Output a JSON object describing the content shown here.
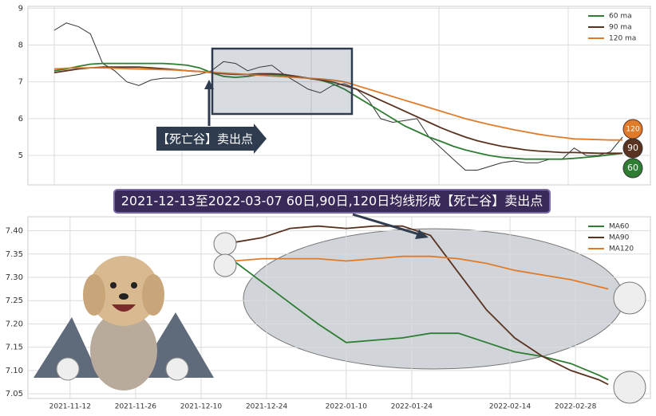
{
  "chart_data": [
    {
      "type": "line",
      "ylim": [
        4.2,
        9.05
      ],
      "yticks": [
        5,
        6,
        7,
        8,
        9
      ],
      "grid": true,
      "legend": "upper right",
      "price_color": "#333333",
      "values": [
        8.4,
        8.6,
        8.5,
        8.3,
        7.5,
        7.3,
        7.0,
        6.9,
        7.05,
        7.1,
        7.1,
        7.15,
        7.2,
        7.3,
        7.55,
        7.5,
        7.3,
        7.4,
        7.45,
        7.2,
        7.0,
        6.8,
        6.7,
        6.9,
        6.95,
        6.8,
        6.5,
        6.0,
        5.9,
        5.95,
        6.0,
        5.5,
        5.2,
        4.9,
        4.6,
        4.6,
        4.7,
        4.8,
        4.85,
        4.8,
        4.8,
        4.9,
        4.9,
        5.2,
        5.0,
        5.0,
        5.1,
        5.5
      ],
      "series": [
        {
          "name": "60 ma",
          "color": "#2e7d32",
          "values": [
            7.3,
            7.35,
            7.42,
            7.48,
            7.5,
            7.5,
            7.5,
            7.5,
            7.5,
            7.5,
            7.48,
            7.45,
            7.38,
            7.25,
            7.15,
            7.12,
            7.15,
            7.2,
            7.2,
            7.18,
            7.15,
            7.1,
            7.05,
            6.95,
            6.8,
            6.6,
            6.4,
            6.2,
            6.0,
            5.8,
            5.65,
            5.5,
            5.38,
            5.25,
            5.15,
            5.07,
            5.0,
            4.95,
            4.92,
            4.9,
            4.9,
            4.9,
            4.9,
            4.92,
            4.95,
            4.98,
            5.02,
            5.06
          ]
        },
        {
          "name": "90 ma",
          "color": "#5a3220",
          "values": [
            7.25,
            7.3,
            7.35,
            7.38,
            7.4,
            7.4,
            7.4,
            7.4,
            7.38,
            7.36,
            7.33,
            7.3,
            7.28,
            7.25,
            7.22,
            7.2,
            7.2,
            7.22,
            7.22,
            7.2,
            7.15,
            7.1,
            7.05,
            7.0,
            6.9,
            6.8,
            6.65,
            6.5,
            6.35,
            6.2,
            6.05,
            5.9,
            5.75,
            5.62,
            5.5,
            5.4,
            5.32,
            5.25,
            5.2,
            5.15,
            5.12,
            5.1,
            5.08,
            5.08,
            5.07,
            5.06,
            5.06,
            5.06
          ]
        },
        {
          "name": "120 ma",
          "color": "#e07b2a",
          "values": [
            7.35,
            7.37,
            7.38,
            7.38,
            7.38,
            7.37,
            7.36,
            7.35,
            7.34,
            7.33,
            7.32,
            7.3,
            7.28,
            7.26,
            7.24,
            7.22,
            7.2,
            7.18,
            7.16,
            7.14,
            7.12,
            7.1,
            7.08,
            7.05,
            7.0,
            6.9,
            6.8,
            6.7,
            6.6,
            6.5,
            6.4,
            6.3,
            6.2,
            6.1,
            6.0,
            5.92,
            5.84,
            5.77,
            5.7,
            5.64,
            5.58,
            5.53,
            5.49,
            5.45,
            5.44,
            5.43,
            5.42,
            5.42
          ]
        }
      ],
      "annotation": "【死亡谷】卖出点",
      "badges": [
        "120",
        "90",
        "60"
      ]
    },
    {
      "type": "line",
      "title": "2021-12-13至2022-03-07 60日,90日,120日均线形成【死亡谷】卖出点",
      "xlim": [
        "2021-11-03",
        "2022-03-16"
      ],
      "xticks": [
        "2021-11-12",
        "2021-11-26",
        "2021-12-10",
        "2021-12-24",
        "2022-01-10",
        "2022-01-24",
        "2022-02-14",
        "2022-02-28"
      ],
      "ylim": [
        7.04,
        7.43
      ],
      "yticks": [
        7.05,
        {
          "value": 7.1,
          "label": "7.10"
        },
        7.15,
        {
          "value": 7.2,
          "label": "7.20"
        },
        7.25,
        {
          "value": 7.3,
          "label": "7.30"
        },
        7.35,
        {
          "value": 7.4,
          "label": "7.40"
        }
      ],
      "grid": true,
      "legend": "upper right",
      "x": [
        "2021-12-17",
        "2021-12-23",
        "2021-12-29",
        "2022-01-04",
        "2022-01-10",
        "2022-01-16",
        "2022-01-22",
        "2022-01-28",
        "2022-02-03",
        "2022-02-09",
        "2022-02-15",
        "2022-02-21",
        "2022-02-27",
        "2022-03-05",
        "2022-03-07"
      ],
      "series": [
        {
          "name": "MA60",
          "color": "#2e7d32",
          "values": [
            7.335,
            7.29,
            7.245,
            7.2,
            7.16,
            7.165,
            7.17,
            7.18,
            7.18,
            7.16,
            7.14,
            7.13,
            7.115,
            7.09,
            7.08
          ]
        },
        {
          "name": "MA90",
          "color": "#5a3220",
          "values": [
            7.375,
            7.385,
            7.405,
            7.41,
            7.405,
            7.41,
            7.41,
            7.39,
            7.31,
            7.23,
            7.17,
            7.13,
            7.1,
            7.08,
            7.07
          ]
        },
        {
          "name": "MA120",
          "color": "#e07b2a",
          "values": [
            7.335,
            7.34,
            7.34,
            7.34,
            7.335,
            7.34,
            7.345,
            7.345,
            7.34,
            7.33,
            7.315,
            7.305,
            7.295,
            7.28,
            7.275
          ]
        }
      ]
    }
  ]
}
